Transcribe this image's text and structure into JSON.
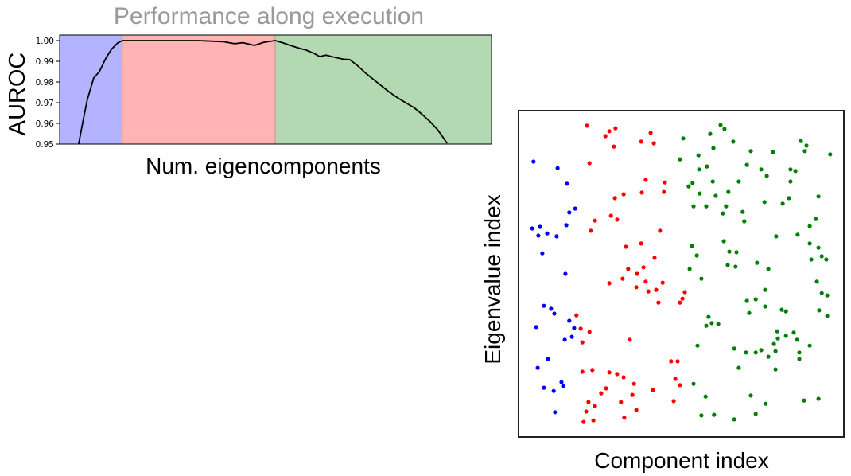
{
  "chart_data": [
    {
      "type": "line",
      "title": "Performance along execution",
      "xlabel": "Num. eigencomponents",
      "ylabel": "AUROC",
      "xlim": [
        0,
        100
      ],
      "ylim": [
        0.95,
        1.003
      ],
      "xticks": [],
      "yticks": [
        0.95,
        0.96,
        0.97,
        0.98,
        0.99,
        1.0
      ],
      "ytick_labels": [
        "0.95",
        "0.96",
        "0.97",
        "0.98",
        "0.99",
        "1.00"
      ],
      "grid": false,
      "regions": [
        {
          "x_start": 0,
          "x_end": 14.5,
          "color": "#b3b3ff"
        },
        {
          "x_start": 14.5,
          "x_end": 49.9,
          "color": "#ffb3b3"
        },
        {
          "x_start": 49.9,
          "x_end": 100,
          "color": "#b3d9b3"
        }
      ],
      "series": [
        {
          "color": "#000000",
          "x": [
            4.4,
            5.3,
            6.4,
            7.9,
            9.2,
            10.7,
            12.0,
            13.4,
            14.5,
            23.0,
            32.2,
            37.8,
            40.5,
            42.4,
            45.1,
            47.3,
            49.9,
            51.6,
            53.4,
            55.2,
            57.1,
            58.9,
            60.2,
            61.7,
            63.5,
            65.7,
            67.2,
            69.1,
            70.9,
            72.7,
            74.6,
            76.4,
            78.3,
            80.1,
            82.0,
            83.8,
            85.6,
            87.5,
            88.6,
            89.7
          ],
          "y": [
            0.95,
            0.96,
            0.9715,
            0.982,
            0.985,
            0.9915,
            0.9958,
            0.9988,
            1.0,
            1.0,
            1.0,
            0.9995,
            0.9985,
            0.999,
            0.9977,
            0.9992,
            1.0,
            0.999,
            0.9977,
            0.9965,
            0.9954,
            0.9938,
            0.9923,
            0.993,
            0.992,
            0.991,
            0.9908,
            0.9877,
            0.9842,
            0.9812,
            0.978,
            0.975,
            0.9723,
            0.97,
            0.9677,
            0.9646,
            0.9612,
            0.957,
            0.9538,
            0.9504
          ]
        }
      ]
    },
    {
      "type": "scatter",
      "xlabel": "Component index",
      "ylabel": "Eigenvalue index",
      "xlim": [
        0,
        100
      ],
      "ylim": [
        0,
        100
      ],
      "xticks": [],
      "yticks": [],
      "grid": false,
      "series": [
        {
          "color": "#0000ff",
          "points": [
            [
              4.6,
              84.4
            ],
            [
              12.0,
              82.4
            ],
            [
              14.9,
              77.6
            ],
            [
              17.4,
              70.0
            ],
            [
              15.6,
              68.8
            ],
            [
              14.7,
              64.9
            ],
            [
              4.2,
              63.9
            ],
            [
              6.6,
              64.4
            ],
            [
              6.1,
              61.7
            ],
            [
              8.8,
              62.4
            ],
            [
              11.7,
              61.5
            ],
            [
              7.3,
              56.3
            ],
            [
              14.4,
              50.0
            ],
            [
              7.8,
              40.2
            ],
            [
              10.0,
              39.3
            ],
            [
              5.4,
              33.7
            ],
            [
              11.0,
              37.8
            ],
            [
              15.6,
              35.6
            ],
            [
              17.1,
              33.4
            ],
            [
              16.4,
              30.7
            ],
            [
              14.2,
              29.8
            ],
            [
              9.0,
              23.9
            ],
            [
              5.9,
              21.2
            ],
            [
              7.8,
              15.1
            ],
            [
              10.8,
              14.1
            ],
            [
              13.2,
              16.8
            ],
            [
              13.7,
              15.6
            ],
            [
              11.2,
              7.6
            ]
          ]
        },
        {
          "color": "#ff0000",
          "points": [
            [
              21.0,
              95.4
            ],
            [
              29.8,
              94.6
            ],
            [
              27.9,
              93.7
            ],
            [
              26.7,
              92.2
            ],
            [
              29.3,
              89.0
            ],
            [
              40.6,
              93.2
            ],
            [
              41.6,
              90.0
            ],
            [
              37.7,
              90.5
            ],
            [
              21.8,
              83.9
            ],
            [
              39.1,
              78.8
            ],
            [
              45.0,
              78.0
            ],
            [
              44.7,
              75.1
            ],
            [
              37.9,
              74.9
            ],
            [
              32.3,
              74.4
            ],
            [
              29.6,
              73.2
            ],
            [
              28.4,
              67.8
            ],
            [
              30.3,
              66.6
            ],
            [
              23.5,
              66.3
            ],
            [
              22.2,
              63.2
            ],
            [
              43.5,
              63.2
            ],
            [
              37.7,
              59.3
            ],
            [
              33.0,
              58.3
            ],
            [
              41.8,
              54.9
            ],
            [
              33.7,
              51.5
            ],
            [
              38.4,
              52.0
            ],
            [
              36.4,
              50.0
            ],
            [
              32.0,
              48.5
            ],
            [
              27.9,
              47.1
            ],
            [
              39.1,
              47.6
            ],
            [
              44.3,
              47.3
            ],
            [
              36.2,
              45.9
            ],
            [
              42.3,
              45.1
            ],
            [
              39.9,
              44.6
            ],
            [
              43.0,
              41.2
            ],
            [
              51.1,
              44.4
            ],
            [
              50.4,
              42.4
            ],
            [
              49.6,
              41.2
            ],
            [
              17.8,
              37.3
            ],
            [
              19.1,
              33.2
            ],
            [
              21.8,
              32.2
            ],
            [
              19.6,
              29.0
            ],
            [
              34.2,
              29.8
            ],
            [
              46.9,
              23.2
            ],
            [
              48.9,
              23.2
            ],
            [
              48.2,
              17.8
            ],
            [
              41.3,
              14.4
            ],
            [
              30.3,
              19.3
            ],
            [
              22.7,
              20.5
            ],
            [
              19.6,
              20.0
            ],
            [
              27.9,
              19.8
            ],
            [
              32.3,
              18.3
            ],
            [
              26.9,
              14.9
            ],
            [
              25.4,
              13.4
            ],
            [
              21.5,
              10.7
            ],
            [
              23.5,
              9.5
            ],
            [
              35.5,
              16.3
            ],
            [
              35.0,
              12.9
            ],
            [
              49.6,
              15.9
            ],
            [
              47.7,
              11.0
            ],
            [
              31.5,
              10.7
            ],
            [
              20.8,
              7.8
            ],
            [
              23.0,
              5.1
            ],
            [
              20.0,
              4.6
            ],
            [
              36.2,
              8.3
            ],
            [
              32.5,
              5.9
            ]
          ]
        },
        {
          "color": "#008000",
          "points": [
            [
              62.1,
              95.6
            ],
            [
              63.3,
              94.4
            ],
            [
              58.9,
              92.9
            ],
            [
              50.6,
              91.5
            ],
            [
              59.9,
              88.5
            ],
            [
              66.0,
              90.5
            ],
            [
              55.3,
              86.3
            ],
            [
              49.6,
              85.1
            ],
            [
              55.5,
              82.0
            ],
            [
              57.9,
              82.9
            ],
            [
              71.4,
              87.6
            ],
            [
              74.6,
              82.0
            ],
            [
              78.2,
              87.3
            ],
            [
              86.8,
              90.7
            ],
            [
              88.5,
              89.3
            ],
            [
              88.0,
              87.6
            ],
            [
              95.8,
              86.6
            ],
            [
              83.6,
              82.0
            ],
            [
              85.1,
              81.5
            ],
            [
              70.2,
              83.4
            ],
            [
              59.7,
              78.3
            ],
            [
              53.5,
              77.8
            ],
            [
              52.3,
              76.8
            ],
            [
              55.7,
              74.6
            ],
            [
              64.5,
              75.1
            ],
            [
              67.7,
              78.3
            ],
            [
              60.6,
              73.9
            ],
            [
              83.6,
              78.3
            ],
            [
              76.3,
              80.0
            ],
            [
              92.2,
              73.7
            ],
            [
              83.1,
              73.2
            ],
            [
              75.6,
              72.0
            ],
            [
              63.8,
              70.7
            ],
            [
              62.8,
              68.5
            ],
            [
              53.8,
              70.7
            ],
            [
              57.7,
              70.7
            ],
            [
              68.9,
              69.0
            ],
            [
              69.4,
              66.1
            ],
            [
              81.2,
              71.5
            ],
            [
              91.4,
              66.8
            ],
            [
              89.5,
              64.6
            ],
            [
              85.8,
              62.0
            ],
            [
              79.2,
              61.5
            ],
            [
              89.5,
              59.3
            ],
            [
              92.2,
              58.0
            ],
            [
              94.6,
              54.4
            ],
            [
              90.0,
              54.4
            ],
            [
              93.2,
              55.4
            ],
            [
              53.3,
              58.5
            ],
            [
              63.1,
              60.0
            ],
            [
              64.8,
              56.8
            ],
            [
              67.0,
              56.6
            ],
            [
              54.8,
              55.6
            ],
            [
              52.6,
              51.5
            ],
            [
              56.2,
              48.5
            ],
            [
              73.3,
              53.4
            ],
            [
              76.8,
              51.5
            ],
            [
              64.3,
              52.7
            ],
            [
              66.7,
              52.2
            ],
            [
              70.2,
              41.7
            ],
            [
              72.9,
              42.2
            ],
            [
              75.8,
              40.0
            ],
            [
              75.8,
              45.1
            ],
            [
              91.7,
              47.6
            ],
            [
              93.2,
              44.1
            ],
            [
              94.9,
              43.4
            ],
            [
              80.9,
              39.0
            ],
            [
              82.2,
              38.5
            ],
            [
              92.4,
              38.8
            ],
            [
              94.9,
              37.1
            ],
            [
              57.7,
              34.1
            ],
            [
              59.4,
              34.9
            ],
            [
              61.4,
              34.6
            ],
            [
              58.4,
              36.8
            ],
            [
              70.9,
              38.0
            ],
            [
              79.5,
              32.4
            ],
            [
              79.7,
              30.2
            ],
            [
              82.2,
              31.0
            ],
            [
              84.6,
              32.0
            ],
            [
              85.6,
              29.8
            ],
            [
              89.5,
              28.0
            ],
            [
              72.9,
              25.9
            ],
            [
              74.6,
              26.6
            ],
            [
              79.0,
              26.3
            ],
            [
              78.5,
              28.5
            ],
            [
              66.3,
              27.1
            ],
            [
              55.0,
              28.0
            ],
            [
              69.9,
              25.9
            ],
            [
              76.8,
              24.6
            ],
            [
              86.3,
              25.9
            ],
            [
              86.3,
              23.9
            ],
            [
              67.7,
              21.2
            ],
            [
              79.0,
              20.7
            ],
            [
              71.4,
              12.7
            ],
            [
              76.0,
              10.2
            ],
            [
              87.8,
              11.2
            ],
            [
              92.2,
              11.7
            ],
            [
              56.2,
              6.6
            ],
            [
              60.1,
              6.8
            ],
            [
              66.3,
              5.4
            ],
            [
              72.9,
              7.1
            ],
            [
              57.5,
              12.4
            ],
            [
              53.8,
              16.3
            ]
          ]
        }
      ]
    }
  ]
}
